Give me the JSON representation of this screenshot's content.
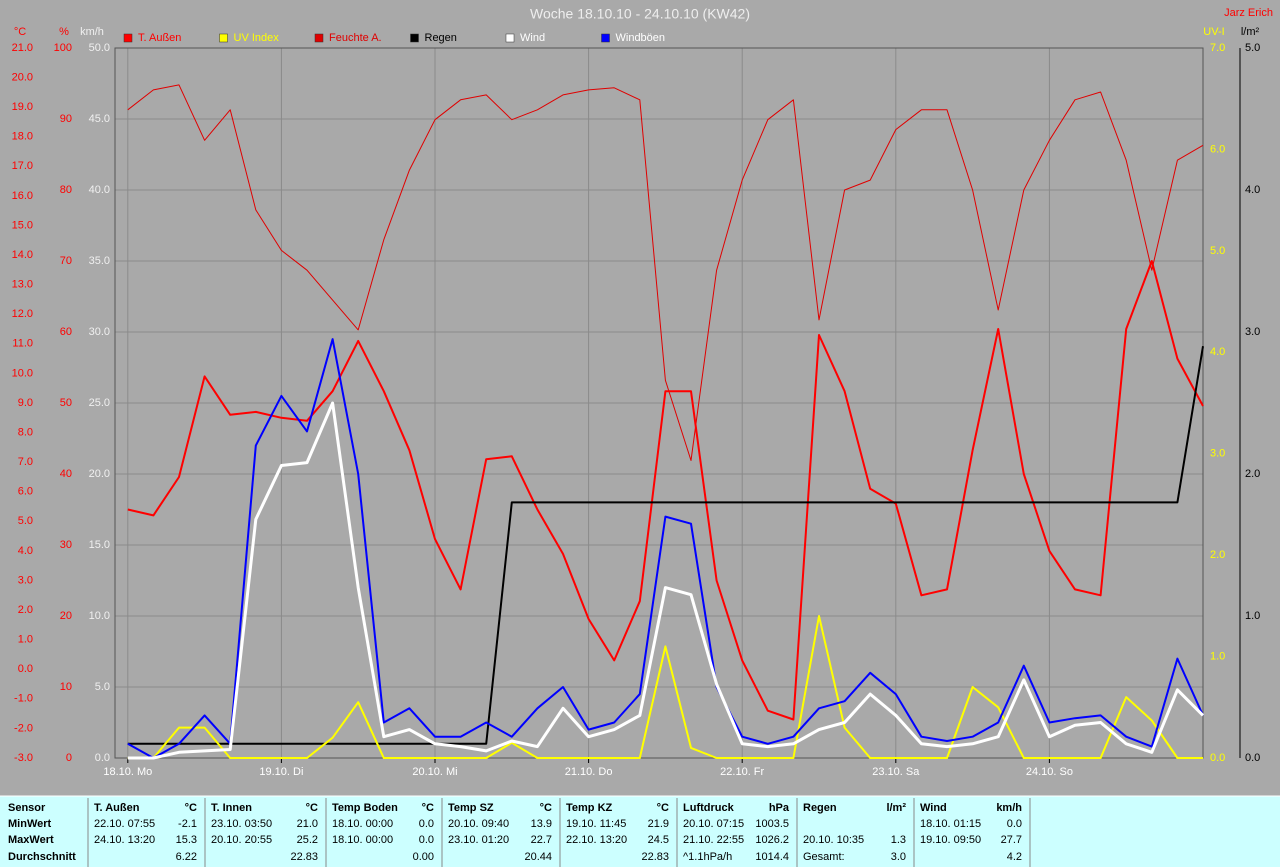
{
  "chart_data": {
    "type": "line",
    "title": "Woche 18.10.10 - 24.10.10 (KW42)",
    "author": "Jarz Erich",
    "xlim": [
      -2,
      168
    ],
    "xticks": [
      {
        "value": 0,
        "label": "18.10. Mo"
      },
      {
        "value": 24,
        "label": "19.10. Di"
      },
      {
        "value": 48,
        "label": "20.10. Mi"
      },
      {
        "value": 72,
        "label": "21.10. Do"
      },
      {
        "value": 96,
        "label": "22.10. Fr"
      },
      {
        "value": 120,
        "label": "23.10. Sa"
      },
      {
        "value": 144,
        "label": "24.10. So"
      }
    ],
    "x": [
      0,
      4,
      8,
      12,
      16,
      20,
      24,
      28,
      32,
      36,
      40,
      44,
      48,
      52,
      56,
      60,
      64,
      68,
      72,
      76,
      80,
      84,
      88,
      92,
      96,
      100,
      104,
      108,
      112,
      116,
      120,
      124,
      128,
      132,
      136,
      140,
      144,
      148,
      152,
      156,
      160,
      164,
      168
    ],
    "grid": true,
    "axes": {
      "temp": {
        "label": "°C",
        "color": "#ff0000",
        "lim": [
          -3,
          21
        ],
        "ticks": [
          {
            "value": -3,
            "label": "-3.0"
          },
          {
            "value": -2,
            "label": "-2.0"
          },
          {
            "value": -1,
            "label": "-1.0"
          },
          {
            "value": 0,
            "label": "0.0"
          },
          {
            "value": 1,
            "label": "1.0"
          },
          {
            "value": 2,
            "label": "2.0"
          },
          {
            "value": 3,
            "label": "3.0"
          },
          {
            "value": 4,
            "label": "4.0"
          },
          {
            "value": 5,
            "label": "5.0"
          },
          {
            "value": 6,
            "label": "6.0"
          },
          {
            "value": 7,
            "label": "7.0"
          },
          {
            "value": 8,
            "label": "8.0"
          },
          {
            "value": 9,
            "label": "9.0"
          },
          {
            "value": 10,
            "label": "10.0"
          },
          {
            "value": 11,
            "label": "11.0"
          },
          {
            "value": 12,
            "label": "12.0"
          },
          {
            "value": 13,
            "label": "13.0"
          },
          {
            "value": 14,
            "label": "14.0"
          },
          {
            "value": 15,
            "label": "15.0"
          },
          {
            "value": 16,
            "label": "16.0"
          },
          {
            "value": 17,
            "label": "17.0"
          },
          {
            "value": 18,
            "label": "18.0"
          },
          {
            "value": 19,
            "label": "19.0"
          },
          {
            "value": 20,
            "label": "20.0"
          },
          {
            "value": 21,
            "label": "21.0"
          }
        ]
      },
      "humidity": {
        "label": "%",
        "color": "#ff0000",
        "lim": [
          0,
          100
        ],
        "ticks": [
          0,
          10,
          20,
          30,
          40,
          50,
          60,
          70,
          80,
          90,
          100
        ]
      },
      "wind": {
        "label": "km/h",
        "color": "#f0f0f0",
        "lim": [
          0,
          50
        ],
        "ticks": [
          {
            "value": 0,
            "label": "0.0"
          },
          {
            "value": 5,
            "label": "5.0"
          },
          {
            "value": 10,
            "label": "10.0"
          },
          {
            "value": 15,
            "label": "15.0"
          },
          {
            "value": 20,
            "label": "20.0"
          },
          {
            "value": 25,
            "label": "25.0"
          },
          {
            "value": 30,
            "label": "30.0"
          },
          {
            "value": 35,
            "label": "35.0"
          },
          {
            "value": 40,
            "label": "40.0"
          },
          {
            "value": 45,
            "label": "45.0"
          },
          {
            "value": 50,
            "label": "50.0"
          }
        ]
      },
      "uv": {
        "label": "UV-I",
        "color": "#ffff00",
        "lim": [
          0,
          7
        ],
        "ticks": [
          {
            "value": 0,
            "label": "0.0"
          },
          {
            "value": 1,
            "label": "1.0"
          },
          {
            "value": 2,
            "label": "2.0"
          },
          {
            "value": 3,
            "label": "3.0"
          },
          {
            "value": 4,
            "label": "4.0"
          },
          {
            "value": 5,
            "label": "5.0"
          },
          {
            "value": 6,
            "label": "6.0"
          },
          {
            "value": 7,
            "label": "7.0"
          }
        ]
      },
      "rain": {
        "label": "l/m²",
        "color": "#000000",
        "lim": [
          0,
          5
        ],
        "ticks": [
          {
            "value": 0,
            "label": "0.0"
          },
          {
            "value": 1,
            "label": "1.0"
          },
          {
            "value": 2,
            "label": "2.0"
          },
          {
            "value": 3,
            "label": "3.0"
          },
          {
            "value": 4,
            "label": "4.0"
          },
          {
            "value": 5,
            "label": "5.0"
          }
        ]
      }
    },
    "series": [
      {
        "name": "T. Außen",
        "color": "#ff0000",
        "axis": "temp",
        "values": [
          5.4,
          5.2,
          6.5,
          9.9,
          8.6,
          8.7,
          8.5,
          8.4,
          9.4,
          11.1,
          9.4,
          7.4,
          4.4,
          2.7,
          7.1,
          7.2,
          5.4,
          3.9,
          1.7,
          0.3,
          2.3,
          9.4,
          9.4,
          3.0,
          0.3,
          -1.4,
          -1.7,
          11.3,
          9.4,
          6.1,
          5.6,
          2.5,
          2.7,
          7.4,
          11.5,
          6.6,
          4.0,
          2.7,
          2.5,
          11.5,
          13.8,
          10.5,
          8.9
        ]
      },
      {
        "name": "UV Index",
        "color": "#ffff00",
        "axis": "uv",
        "values": [
          0,
          0,
          0.3,
          0.3,
          0,
          0,
          0,
          0,
          0.2,
          0.55,
          0,
          0,
          0,
          0,
          0,
          0.15,
          0,
          0,
          0,
          0,
          0,
          1.1,
          0.1,
          0,
          0,
          0,
          0,
          1.4,
          0.3,
          0,
          0,
          0,
          0,
          0.7,
          0.5,
          0,
          0,
          0,
          0,
          0.6,
          0.37,
          0,
          0
        ]
      },
      {
        "name": "Feuchte A.",
        "color": "#e00000",
        "axis": "humidity",
        "values": [
          91.3,
          94.1,
          94.8,
          87.0,
          91.3,
          77.2,
          71.5,
          68.7,
          64.5,
          60.3,
          73.0,
          82.8,
          89.9,
          92.7,
          93.4,
          89.9,
          91.3,
          93.4,
          94.1,
          94.4,
          92.7,
          53.2,
          41.9,
          68.7,
          81.4,
          89.9,
          92.7,
          61.7,
          80.0,
          81.4,
          88.5,
          91.3,
          91.3,
          80.0,
          63.1,
          80.0,
          87.0,
          92.7,
          93.8,
          84.2,
          68.7,
          84.2,
          86.3
        ]
      },
      {
        "name": "Regen",
        "color": "#000000",
        "axis": "rain",
        "values": [
          0.1,
          0.1,
          0.1,
          0.1,
          0.1,
          0.1,
          0.1,
          0.1,
          0.1,
          0.1,
          0.1,
          0.1,
          0.1,
          0.1,
          0.1,
          1.8,
          1.8,
          1.8,
          1.8,
          1.8,
          1.8,
          1.8,
          1.8,
          1.8,
          1.8,
          1.8,
          1.8,
          1.8,
          1.8,
          1.8,
          1.8,
          1.8,
          1.8,
          1.8,
          1.8,
          1.8,
          1.8,
          1.8,
          1.8,
          1.8,
          1.8,
          1.8,
          2.9
        ]
      },
      {
        "name": "Wind",
        "color": "#ffffff",
        "axis": "wind",
        "values": [
          0,
          0,
          0.4,
          0.5,
          0.6,
          16.8,
          20.6,
          20.8,
          25,
          12,
          1.5,
          2.0,
          1.0,
          0.8,
          0.5,
          1.2,
          0.8,
          3.5,
          1.5,
          2.0,
          3.0,
          12,
          11.5,
          5.2,
          1.0,
          0.8,
          1.0,
          2.0,
          2.5,
          4.5,
          3.0,
          1.0,
          0.8,
          1.0,
          1.5,
          5.5,
          1.5,
          2.3,
          2.5,
          1.0,
          0.4,
          4.8,
          3.0
        ]
      },
      {
        "name": "Windböen",
        "color": "#0000ff",
        "axis": "wind",
        "values": [
          1.0,
          0,
          1.0,
          3.0,
          1.0,
          22,
          25.5,
          23,
          29.5,
          20,
          2.5,
          3.5,
          1.5,
          1.5,
          2.5,
          1.5,
          3.5,
          5.0,
          2.0,
          2.5,
          4.5,
          17,
          16.5,
          5.0,
          1.5,
          1.0,
          1.5,
          3.5,
          4.0,
          6.0,
          4.5,
          1.5,
          1.2,
          1.5,
          2.5,
          6.5,
          2.5,
          2.8,
          3.0,
          1.5,
          0.8,
          7.0,
          3.0
        ]
      }
    ]
  },
  "table": {
    "header": "Sensor",
    "row_labels": [
      "MinWert",
      "MaxWert",
      "Durchschnitt"
    ],
    "columns": [
      {
        "name": "T. Außen",
        "unit": "°C",
        "cells": [
          {
            "time": "22.10. 07:55",
            "value": "-2.1"
          },
          {
            "time": "24.10. 13:20",
            "value": "15.3"
          },
          {
            "value": "6.22"
          }
        ]
      },
      {
        "name": "T. Innen",
        "unit": "°C",
        "cells": [
          {
            "time": "23.10. 03:50",
            "value": "21.0"
          },
          {
            "time": "20.10. 20:55",
            "value": "25.2"
          },
          {
            "value": "22.83"
          }
        ]
      },
      {
        "name": "Temp Boden",
        "unit": "°C",
        "cells": [
          {
            "time": "18.10. 00:00",
            "value": "0.0"
          },
          {
            "time": "18.10. 00:00",
            "value": "0.0"
          },
          {
            "value": "0.00"
          }
        ]
      },
      {
        "name": "Temp SZ",
        "unit": "°C",
        "cells": [
          {
            "time": "20.10. 09:40",
            "value": "13.9"
          },
          {
            "time": "23.10. 01:20",
            "value": "22.7"
          },
          {
            "value": "20.44"
          }
        ]
      },
      {
        "name": "Temp KZ",
        "unit": "°C",
        "cells": [
          {
            "time": "19.10. 11:45",
            "value": "21.9"
          },
          {
            "time": "22.10. 13:20",
            "value": "24.5"
          },
          {
            "value": "22.83"
          }
        ]
      },
      {
        "name": "Luftdruck",
        "unit": "hPa",
        "cells": [
          {
            "time": "20.10. 07:15",
            "value": "1003.5"
          },
          {
            "time": "21.10. 22:55",
            "value": "1026.2"
          },
          {
            "time": "^1.1hPa/h",
            "value": "1014.4"
          }
        ]
      },
      {
        "name": "Regen",
        "unit": "l/m²",
        "cells": [
          null,
          {
            "time": "20.10. 10:35",
            "value": "1.3"
          },
          {
            "time": "Gesamt:",
            "value": "3.0"
          }
        ]
      },
      {
        "name": "Wind",
        "unit": "km/h",
        "cells": [
          {
            "time": "18.10. 01:15",
            "value": "0.0"
          },
          {
            "time": "19.10. 09:50",
            "value": "27.7"
          },
          {
            "value": "4.2"
          }
        ]
      }
    ]
  }
}
